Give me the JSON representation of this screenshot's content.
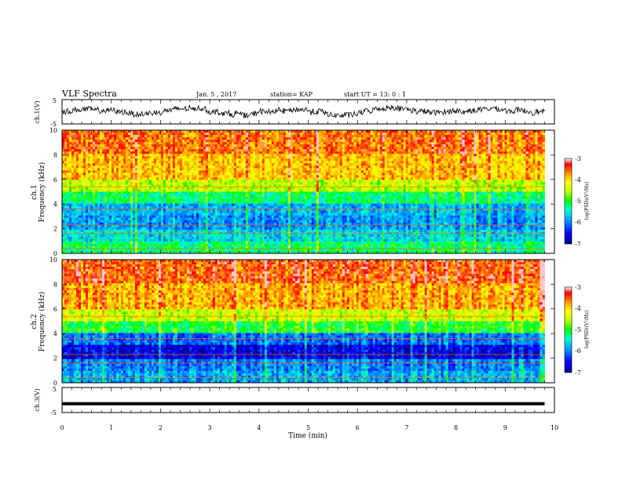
{
  "header": {
    "title": "VLF Spectra",
    "date": "Jan. 5 , 2017",
    "station": "station= KAP",
    "start": "start UT = 13: 0 : 1"
  },
  "chart_data": [
    {
      "type": "line",
      "panel": "ch1-waveform",
      "ylabel": "ch.1(V)",
      "ylim": [
        -5,
        5
      ],
      "yticks": [
        "5",
        "-5"
      ],
      "xlim": [
        0,
        10
      ],
      "series": [
        {
          "values_summary": "noisy waveform roughly between -3 and 3 V over 0-9.8 min"
        }
      ]
    },
    {
      "type": "heatmap",
      "panel": "ch1-spectrogram",
      "ylabel_1": "ch.1",
      "ylabel_2": "Frequency (kHz)",
      "ylim": [
        0,
        10
      ],
      "yticks": [
        "0",
        "2",
        "4",
        "6",
        "8",
        "10"
      ],
      "xlim": [
        0,
        9.8
      ],
      "colorbar": {
        "label": "log(PSD)(V²/Hz)",
        "range": [
          -7,
          -3
        ],
        "ticks": [
          "-3",
          "-4",
          "-5",
          "-6",
          "-7"
        ]
      },
      "bands_kHz_to_log": [
        [
          0,
          1,
          -5.2
        ],
        [
          1,
          2,
          -5.6
        ],
        [
          2,
          3,
          -5.9
        ],
        [
          3,
          4,
          -5.8
        ],
        [
          4,
          5,
          -5.2
        ],
        [
          5,
          6,
          -4.5
        ],
        [
          6,
          8,
          -3.9
        ],
        [
          8,
          10,
          -3.6
        ]
      ]
    },
    {
      "type": "heatmap",
      "panel": "ch2-spectrogram",
      "ylabel_1": "ch.2",
      "ylabel_2": "Frequency (kHz)",
      "ylim": [
        0,
        10
      ],
      "yticks": [
        "0",
        "2",
        "4",
        "6",
        "8",
        "10"
      ],
      "xlim": [
        0,
        9.8
      ],
      "colorbar": {
        "label": "log(PSD)(V²/Hz)",
        "range": [
          -7,
          -3
        ],
        "ticks": [
          "-3",
          "-4",
          "-5",
          "-6",
          "-7"
        ]
      },
      "bands_kHz_to_log": [
        [
          0,
          1,
          -5.8
        ],
        [
          1,
          2,
          -6.0
        ],
        [
          2,
          3,
          -6.6
        ],
        [
          3,
          4,
          -6.1
        ],
        [
          4,
          5,
          -5.0
        ],
        [
          5,
          6,
          -4.4
        ],
        [
          6,
          8,
          -3.8
        ],
        [
          8,
          10,
          -3.5
        ]
      ]
    },
    {
      "type": "line",
      "panel": "ch3-waveform",
      "ylabel": "ch.3(V)",
      "ylim": [
        -5,
        5
      ],
      "yticks": [
        "5",
        "-5"
      ],
      "xlim": [
        0,
        10
      ],
      "series": [
        {
          "values_summary": "flat near -1.5 V"
        }
      ]
    }
  ],
  "xaxis": {
    "label": "Time (min)",
    "ticks": [
      "0",
      "1",
      "2",
      "3",
      "4",
      "5",
      "6",
      "7",
      "8",
      "9",
      "10"
    ]
  },
  "colors": {
    "colormap": [
      "#000080",
      "#0000ff",
      "#00a0ff",
      "#00ffd0",
      "#00ff00",
      "#c8ff00",
      "#ffff00",
      "#ff9000",
      "#ff0000",
      "#ffffff"
    ]
  }
}
